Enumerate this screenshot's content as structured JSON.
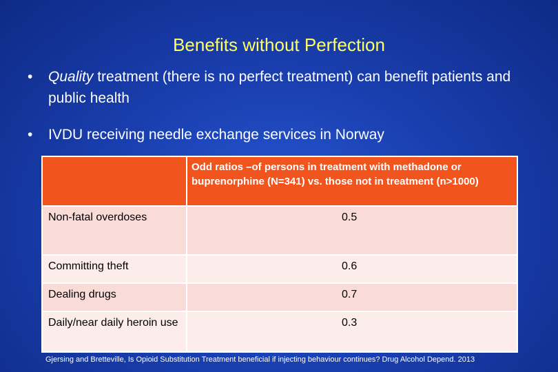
{
  "slide": {
    "title": "Benefits without Perfection",
    "bullets": [
      {
        "emphasis": "Quality",
        "rest": " treatment (there is no perfect treatment) can benefit patients and public health"
      },
      {
        "text": "IVDU receiving needle exchange services in Norway"
      }
    ],
    "bullet_symbol": "•"
  },
  "table": {
    "header": "Odd ratios –of persons in treatment with methadone or buprenorphine (N=341) vs. those not in treatment (n>1000)",
    "rows": [
      {
        "label": "Non-fatal overdoses",
        "value": "0.5"
      },
      {
        "label": "Committing theft",
        "value": "0.6"
      },
      {
        "label": "Dealing drugs",
        "value": "0.7"
      },
      {
        "label": "Daily/near daily heroin use",
        "value": "0.3"
      }
    ]
  },
  "citation": "Gjersing and Bretteville, Is Opioid Substitution Treatment beneficial if injecting behaviour continues? Drug Alcohol Depend. 2013",
  "colors": {
    "title": "#ffff66",
    "header_fill": "#f2541d",
    "row_fill_dark": "#f9dcd8",
    "row_fill_light": "#fcedeb",
    "background": "#1a3fb0"
  }
}
